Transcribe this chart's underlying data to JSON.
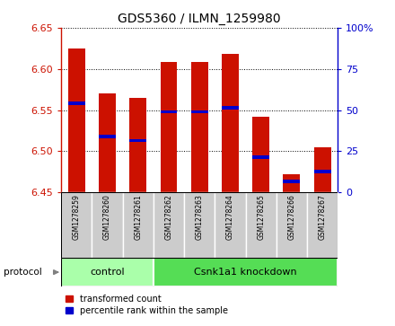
{
  "title": "GDS5360 / ILMN_1259980",
  "samples": [
    "GSM1278259",
    "GSM1278260",
    "GSM1278261",
    "GSM1278262",
    "GSM1278263",
    "GSM1278264",
    "GSM1278265",
    "GSM1278266",
    "GSM1278267"
  ],
  "bar_tops": [
    6.625,
    6.57,
    6.565,
    6.608,
    6.608,
    6.618,
    6.542,
    6.472,
    6.505
  ],
  "bar_bottom": 6.45,
  "blue_positions": [
    6.558,
    6.518,
    6.513,
    6.548,
    6.548,
    6.553,
    6.493,
    6.463,
    6.475
  ],
  "left_ylim": [
    6.45,
    6.65
  ],
  "right_ylim": [
    0,
    100
  ],
  "left_yticks": [
    6.45,
    6.5,
    6.55,
    6.6,
    6.65
  ],
  "right_yticks": [
    0,
    25,
    50,
    75,
    100
  ],
  "right_yticklabels": [
    "0",
    "25",
    "50",
    "75",
    "100%"
  ],
  "bar_color": "#cc1100",
  "blue_color": "#0000cc",
  "control_color": "#aaffaa",
  "knockdown_color": "#55dd55",
  "protocol_groups": [
    {
      "label": "control",
      "n_samples": 3
    },
    {
      "label": "Csnk1a1 knockdown",
      "n_samples": 6
    }
  ],
  "grid_color": "#000000",
  "tick_bg_color": "#cccccc"
}
